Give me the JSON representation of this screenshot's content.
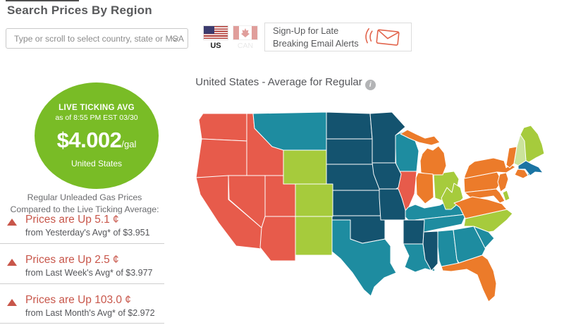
{
  "header": {
    "title": "Search Prices By Region"
  },
  "search": {
    "placeholder": "Type or scroll to select country, state or MSA"
  },
  "tabs": {
    "us_label": "US",
    "can_label": "CAN"
  },
  "signup": {
    "line1": "Sign-Up for Late",
    "line2": "Breaking Email Alerts"
  },
  "ticker": {
    "heading": "LIVE TICKING AVG",
    "timestamp": "as of  8:55 PM EST 03/30",
    "price": "$4.002",
    "unit": "/gal",
    "region": "United States",
    "bg_color": "#79BC26"
  },
  "comparison": {
    "heading1": "Regular Unleaded Gas Prices",
    "heading2": "Compared to the Live Ticking Average:",
    "accent_color": "#C8564A",
    "rows": [
      {
        "title": "Prices are Up 5.1 ¢",
        "subtitle": "from Yesterday's Avg* of $3.951"
      },
      {
        "title": "Prices are Up 2.5 ¢",
        "subtitle": "from Last Week's Avg* of $3.977"
      },
      {
        "title": "Prices are Up 103.0 ¢",
        "subtitle": "from Last Month's Avg* of $2.972"
      }
    ]
  },
  "map": {
    "title": "United States - Average for Regular",
    "info_glyph": "i",
    "palette": {
      "red": "#E75B4B",
      "teal": "#1E8CA0",
      "navy": "#14536F",
      "lime": "#A6CB3C",
      "pale_lime": "#CBE39B",
      "orange": "#EC7B2A",
      "blue": "#1B74A3"
    },
    "states": [
      {
        "id": "WA",
        "color": "red"
      },
      {
        "id": "OR",
        "color": "red"
      },
      {
        "id": "CA",
        "color": "red"
      },
      {
        "id": "NV",
        "color": "red"
      },
      {
        "id": "ID",
        "color": "red"
      },
      {
        "id": "UT",
        "color": "red"
      },
      {
        "id": "AZ",
        "color": "red"
      },
      {
        "id": "IL",
        "color": "red"
      },
      {
        "id": "MT",
        "color": "teal"
      },
      {
        "id": "TX",
        "color": "teal"
      },
      {
        "id": "WI",
        "color": "teal"
      },
      {
        "id": "KY",
        "color": "teal"
      },
      {
        "id": "TN",
        "color": "teal"
      },
      {
        "id": "AL",
        "color": "teal"
      },
      {
        "id": "GA",
        "color": "teal"
      },
      {
        "id": "SC",
        "color": "teal"
      },
      {
        "id": "LA",
        "color": "teal"
      },
      {
        "id": "RI",
        "color": "teal"
      },
      {
        "id": "ND",
        "color": "navy"
      },
      {
        "id": "SD",
        "color": "navy"
      },
      {
        "id": "NE",
        "color": "navy"
      },
      {
        "id": "KS",
        "color": "navy"
      },
      {
        "id": "OK",
        "color": "navy"
      },
      {
        "id": "MN",
        "color": "navy"
      },
      {
        "id": "IA",
        "color": "navy"
      },
      {
        "id": "MO",
        "color": "navy"
      },
      {
        "id": "AR",
        "color": "navy"
      },
      {
        "id": "MS",
        "color": "navy"
      },
      {
        "id": "WY",
        "color": "lime"
      },
      {
        "id": "CO",
        "color": "lime"
      },
      {
        "id": "NM",
        "color": "lime"
      },
      {
        "id": "OH",
        "color": "lime"
      },
      {
        "id": "WV",
        "color": "lime"
      },
      {
        "id": "NC",
        "color": "lime"
      },
      {
        "id": "ME",
        "color": "lime"
      },
      {
        "id": "DE",
        "color": "lime"
      },
      {
        "id": "NH",
        "color": "pale_lime"
      },
      {
        "id": "MI",
        "color": "orange"
      },
      {
        "id": "IN",
        "color": "orange"
      },
      {
        "id": "PA",
        "color": "orange"
      },
      {
        "id": "NY",
        "color": "orange"
      },
      {
        "id": "VT",
        "color": "orange"
      },
      {
        "id": "NJ",
        "color": "orange"
      },
      {
        "id": "MD",
        "color": "orange"
      },
      {
        "id": "VA",
        "color": "orange"
      },
      {
        "id": "FL",
        "color": "orange"
      },
      {
        "id": "CT",
        "color": "orange"
      },
      {
        "id": "MA",
        "color": "blue"
      }
    ]
  }
}
